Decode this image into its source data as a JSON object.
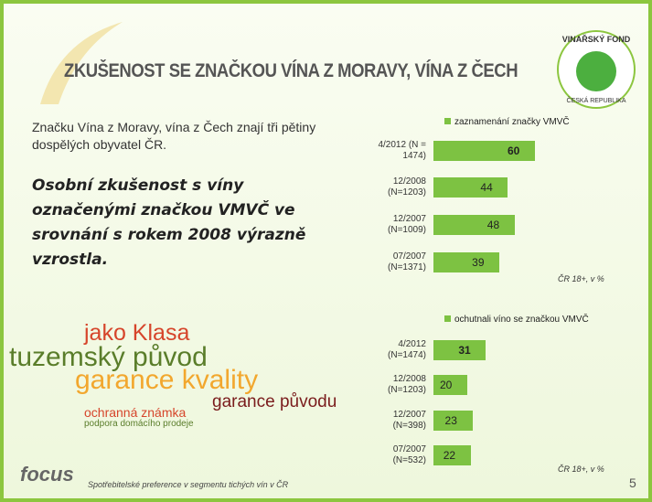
{
  "title": "ZKUŠENOST SE ZNAČKOU VÍNA Z MORAVY, VÍNA Z ČECH",
  "logo": {
    "top": "VINAŘSKÝ FOND",
    "bottom": "ČESKÁ REPUBLIKA"
  },
  "intro": "Značku Vína z Moravy, vína z Čech znají tři pětiny dospělých obyvatel ČR.",
  "highlight": "Osobní zkušenost s víny označenými značkou VMVČ ve srovnání s rokem 2008 výrazně vzrostla.",
  "word_cloud": [
    "jako Klasa",
    "tuzemský původ",
    "garance kvality",
    "garance původu",
    "ochranná známka",
    "podpora domácího prodeje"
  ],
  "footer": {
    "brand": "focus",
    "text": "Spotřebitelské preference v segmentu tichých vín v ČR",
    "page": "5"
  },
  "chart_data": [
    {
      "type": "bar",
      "orientation": "horizontal",
      "categories": [
        "4/2012 (N =\n1474)",
        "12/2008\n(N=1203)",
        "12/2007\n(N=1009)",
        "07/2007\n(N=1371)"
      ],
      "series": [
        {
          "name": "zaznamenání značky VMVČ",
          "color": "#7dc242",
          "values": [
            60,
            44,
            48,
            39
          ]
        }
      ],
      "note": "ČR 18+, v %"
    },
    {
      "type": "bar",
      "orientation": "horizontal",
      "categories": [
        "4/2012\n(N=1474)",
        "12/2008\n(N=1203)",
        "12/2007\n(N=398)",
        "07/2007\n(N=532)"
      ],
      "series": [
        {
          "name": "ochutnali víno se značkou VMVČ",
          "color": "#7dc242",
          "values": [
            31,
            20,
            23,
            22
          ]
        }
      ],
      "note": "ČR 18+, v %"
    }
  ]
}
